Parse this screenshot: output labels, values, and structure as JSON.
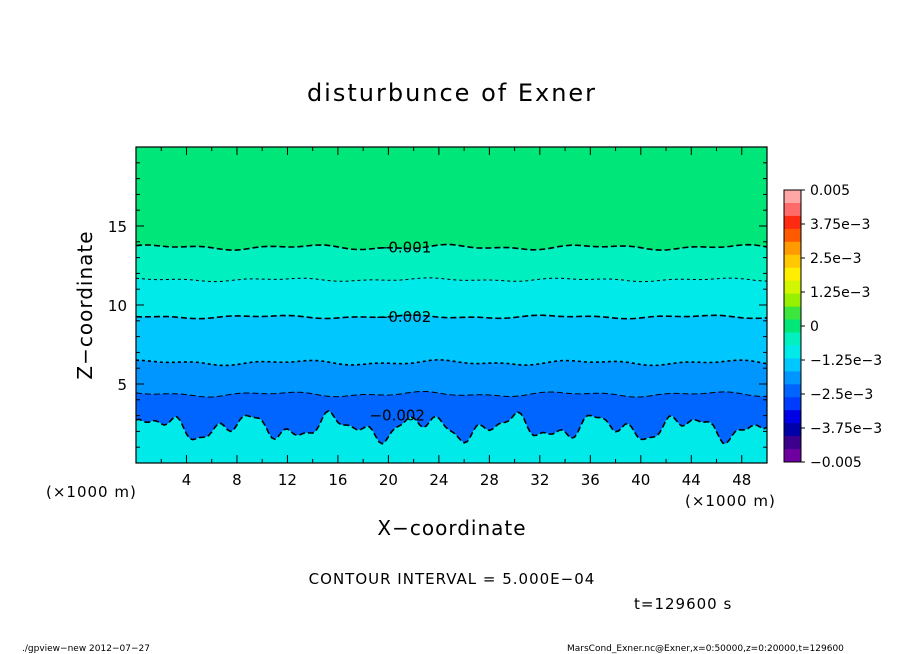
{
  "chart_data": {
    "type": "heatmap",
    "title": "disturbunce of Exner",
    "xlabel": "X−coordinate",
    "ylabel": "Z−coordinate",
    "xlim": [
      0,
      50
    ],
    "ylim": [
      0,
      20
    ],
    "x_unit": "(×1000 m)",
    "y_unit": "(×1000 m)",
    "xticks": [
      "4",
      "8",
      "12",
      "16",
      "20",
      "24",
      "28",
      "32",
      "36",
      "40",
      "44",
      "48"
    ],
    "yticks": [
      "5",
      "10",
      "15"
    ],
    "grid": false,
    "colorbar": {
      "labels": [
        "0.005",
        "3.75e−3",
        "2.5e−3",
        "1.25e−3",
        "0",
        "−1.25e−3",
        "−2.5e−3",
        "−3.75e−3",
        "−0.005"
      ],
      "levels": [
        0.005,
        0.0045,
        0.004,
        0.0035,
        0.003,
        0.0025,
        0.002,
        0.0015,
        0.001,
        0.0005,
        0,
        -0.0005,
        -0.001,
        -0.0015,
        -0.002,
        -0.0025,
        -0.003,
        -0.0035,
        -0.004,
        -0.0045,
        -0.005
      ],
      "colors": [
        "#ffa6a6",
        "#ff6a6a",
        "#ff2a12",
        "#ff5a00",
        "#ff9a00",
        "#ffc800",
        "#ffee00",
        "#d2f500",
        "#96f000",
        "#3ce63c",
        "#00e678",
        "#00f0c0",
        "#00eaea",
        "#00c8ff",
        "#0096ff",
        "#0064ff",
        "#003cff",
        "#0000e6",
        "#0000a8",
        "#3c008c",
        "#6e00a0"
      ]
    },
    "band_colors": {
      "0_to_-0.0005": "#00e678",
      "-0.0005_to_-0.001": "#00f0c0",
      "-0.001_to_-0.0015": "#00eaea",
      "-0.0015_to_-0.002": "#00c8ff",
      "-0.002_to_-0.0025": "#0096ff",
      "-0.0025_to_-0.003": "#0064ff"
    },
    "contours": [
      {
        "level": -0.0005,
        "z_km": 13.6,
        "style": "dashed",
        "label": ""
      },
      {
        "level": -0.001,
        "z_km": 11.6,
        "style": "dashed",
        "label": "−0.001"
      },
      {
        "level": -0.0015,
        "z_km": 9.2,
        "style": "dashed",
        "label": ""
      },
      {
        "level": -0.002,
        "z_km": 6.3,
        "style": "dashed",
        "label": "−0.002"
      },
      {
        "level": -0.0025,
        "z_km": 4.3,
        "style": "dashed",
        "label": ""
      },
      {
        "level": -0.002,
        "z_km": 2.3,
        "style": "dashed",
        "label": "−0.002"
      }
    ],
    "labels": {
      "contour_1": "−0.001",
      "contour_2": "−0.002",
      "contour_3": "−0.002"
    }
  },
  "info": {
    "contour_interval": "CONTOUR INTERVAL = 5.000E−04",
    "time": "t=129600 s",
    "footer_left": "./gpview−new  2012−07−27",
    "footer_right": "MarsCond_Exner.nc@Exner,x=0:50000,z=0:20000,t=129600"
  }
}
